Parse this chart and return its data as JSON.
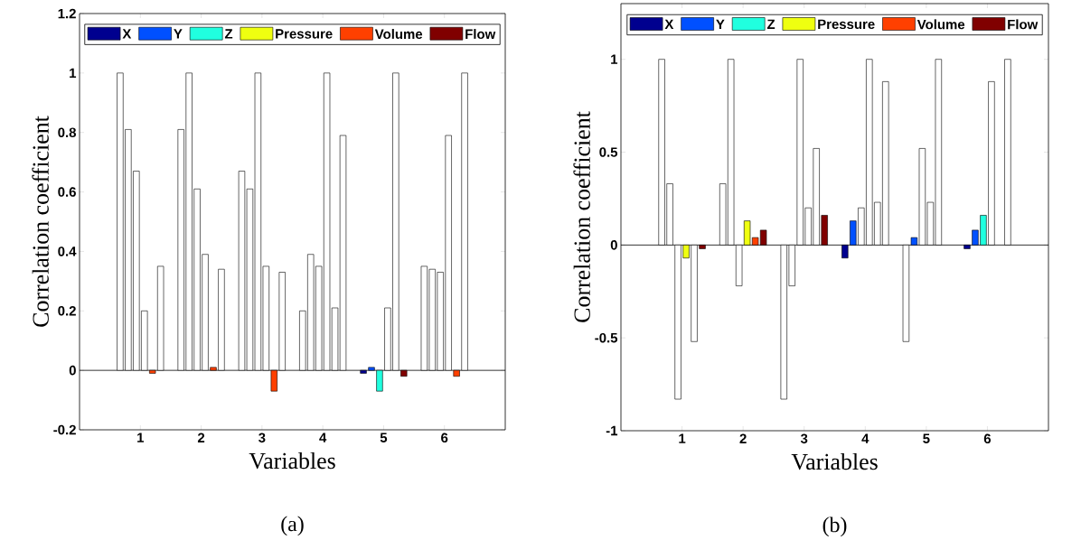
{
  "chart_data": [
    {
      "type": "bar",
      "xlabel": "Variables",
      "ylabel": "Correlation coefficient",
      "categories": [
        "1",
        "2",
        "3",
        "4",
        "5",
        "6"
      ],
      "ylim": [
        -0.2,
        1.2
      ],
      "yticks": [
        -0.2,
        0,
        0.2,
        0.4,
        0.6,
        0.8,
        1,
        1.2
      ],
      "legend": "top",
      "annotations": [
        "(a)"
      ],
      "series": [
        {
          "name": "X",
          "color": "#00008f",
          "values": [
            1,
            0.81,
            0.67,
            0.2,
            -0.01,
            0.35
          ],
          "colors": [
            "#ffffff",
            "#ffffff",
            "#ffffff",
            "#ffffff",
            "#00008f",
            "#ffffff"
          ]
        },
        {
          "name": "Y",
          "color": "#0050ff",
          "values": [
            0.81,
            1,
            0.61,
            0.39,
            0.01,
            0.34
          ],
          "colors": [
            "#ffffff",
            "#ffffff",
            "#ffffff",
            "#ffffff",
            "#0050ff",
            "#ffffff"
          ]
        },
        {
          "name": "Z",
          "color": "#20ffdf",
          "values": [
            0.67,
            0.61,
            1,
            0.35,
            -0.07,
            0.33
          ],
          "colors": [
            "#ffffff",
            "#ffffff",
            "#ffffff",
            "#ffffff",
            "#20ffdf",
            "#ffffff"
          ]
        },
        {
          "name": "Pressure",
          "color": "#efff10",
          "values": [
            0.2,
            0.39,
            0.35,
            1,
            0.21,
            0.79
          ],
          "colors": [
            "#ffffff",
            "#ffffff",
            "#ffffff",
            "#ffffff",
            "#ffffff",
            "#ffffff"
          ]
        },
        {
          "name": "Volume",
          "color": "#ff4000",
          "values": [
            -0.01,
            0.01,
            -0.07,
            0.21,
            1,
            -0.02
          ],
          "colors": [
            "#ff4000",
            "#ff4000",
            "#ff4000",
            "#ffffff",
            "#ffffff",
            "#ff4000"
          ]
        },
        {
          "name": "Flow",
          "color": "#800000",
          "values": [
            0.35,
            0.34,
            0.33,
            0.79,
            -0.02,
            1
          ],
          "colors": [
            "#ffffff",
            "#ffffff",
            "#ffffff",
            "#ffffff",
            "#800000",
            "#ffffff"
          ]
        }
      ]
    },
    {
      "type": "bar",
      "xlabel": "Variables",
      "ylabel": "Correlation coefficient",
      "categories": [
        "1",
        "2",
        "3",
        "4",
        "5",
        "6"
      ],
      "ylim": [
        -1,
        1.3
      ],
      "yticks": [
        -1,
        -0.5,
        0,
        0.5,
        1
      ],
      "legend": "top",
      "annotations": [
        "(b)"
      ],
      "series": [
        {
          "name": "X",
          "color": "#00008f",
          "values": [
            1,
            0.33,
            -0.83,
            -0.07,
            -0.52,
            -0.02
          ],
          "colors": [
            "#ffffff",
            "#ffffff",
            "#ffffff",
            "#00008f",
            "#ffffff",
            "#00008f"
          ]
        },
        {
          "name": "Y",
          "color": "#0050ff",
          "values": [
            0.33,
            1,
            -0.22,
            0.13,
            0.04,
            0.08
          ],
          "colors": [
            "#ffffff",
            "#ffffff",
            "#ffffff",
            "#0050ff",
            "#0050ff",
            "#0050ff"
          ]
        },
        {
          "name": "Z",
          "color": "#20ffdf",
          "values": [
            -0.83,
            -0.22,
            1,
            0.2,
            0.52,
            0.16
          ],
          "colors": [
            "#ffffff",
            "#ffffff",
            "#ffffff",
            "#ffffff",
            "#ffffff",
            "#20ffdf"
          ]
        },
        {
          "name": "Pressure",
          "color": "#efff10",
          "values": [
            -0.07,
            0.13,
            0.2,
            1,
            0.23,
            0.88
          ],
          "colors": [
            "#efff10",
            "#efff10",
            "#ffffff",
            "#ffffff",
            "#ffffff",
            "#ffffff"
          ]
        },
        {
          "name": "Volume",
          "color": "#ff4000",
          "values": [
            -0.52,
            0.04,
            0.52,
            0.23,
            1,
            0
          ],
          "colors": [
            "#ffffff",
            "#ff4000",
            "#ffffff",
            "#ffffff",
            "#ffffff",
            "#ffffff"
          ]
        },
        {
          "name": "Flow",
          "color": "#800000",
          "values": [
            -0.02,
            0.08,
            0.16,
            0.88,
            0,
            1
          ],
          "colors": [
            "#800000",
            "#800000",
            "#800000",
            "#ffffff",
            "#ffffff",
            "#ffffff"
          ]
        }
      ]
    }
  ]
}
